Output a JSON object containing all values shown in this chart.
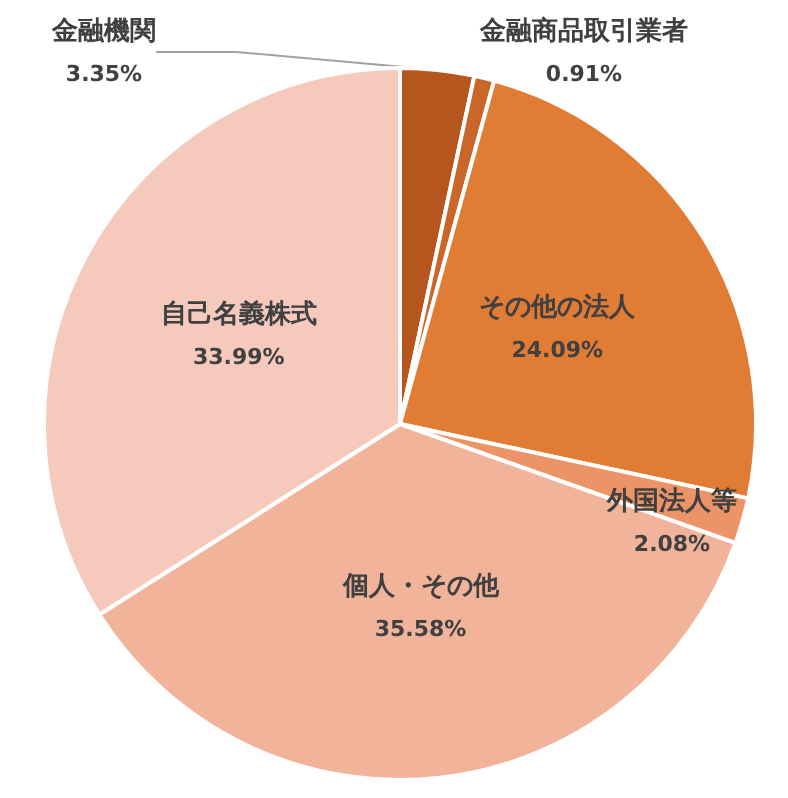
{
  "chart_data": {
    "type": "pie",
    "categories": [
      "金融機関",
      "金融商品取引業者",
      "その他の法人",
      "外国法人等",
      "個人・その他",
      "自己名義株式"
    ],
    "values": [
      3.35,
      0.91,
      24.09,
      2.08,
      35.58,
      33.99
    ],
    "colors": [
      "#b5561f",
      "#c9672a",
      "#e17c35",
      "#ec9467",
      "#f2b39b",
      "#f5cabd"
    ],
    "value_labels": [
      "3.35%",
      "0.91%",
      "24.09%",
      "2.08%",
      "35.58%",
      "33.99%"
    ],
    "legend": false
  }
}
